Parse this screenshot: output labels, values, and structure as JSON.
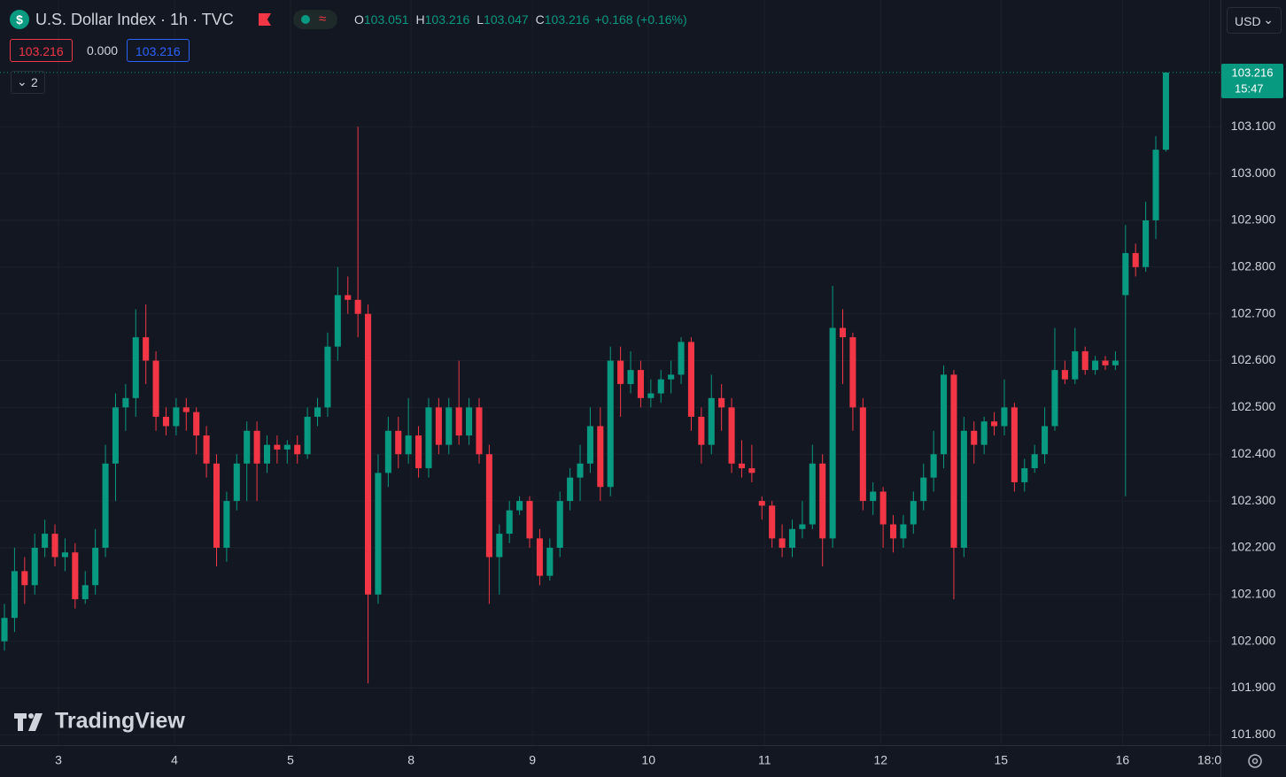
{
  "header": {
    "symbol_title": "U.S. Dollar Index · 1h · TVC",
    "ohlc": [
      {
        "key": "O",
        "value": "103.051"
      },
      {
        "key": "H",
        "value": "103.216"
      },
      {
        "key": "L",
        "value": "103.047"
      },
      {
        "key": "C",
        "value": "103.216"
      }
    ],
    "change": "+0.168 (+0.16%)",
    "price_boxes": [
      "103.216",
      "0.000",
      "103.216"
    ],
    "indicator_count": "2",
    "currency": "USD",
    "brand": "TradingView",
    "last_price_label": {
      "price": "103.216",
      "time": "15:47"
    }
  },
  "chart_data": {
    "type": "candlestick",
    "up_color": "#089981",
    "down_color": "#f23645",
    "grid": true,
    "last_price": 103.216,
    "xlim": [
      -0.44,
      120.4
    ],
    "xticks": [
      {
        "value": 5.35,
        "label": "3"
      },
      {
        "value": 16.84,
        "label": "4"
      },
      {
        "value": 28.33,
        "label": "5"
      },
      {
        "value": 40.26,
        "label": "8"
      },
      {
        "value": 52.28,
        "label": "9"
      },
      {
        "value": 63.77,
        "label": "10"
      },
      {
        "value": 75.26,
        "label": "11"
      },
      {
        "value": 86.75,
        "label": "12"
      },
      {
        "value": 98.68,
        "label": "15"
      },
      {
        "value": 110.7,
        "label": "16"
      },
      {
        "value": 119.3,
        "label": "18:0"
      }
    ],
    "ylim": [
      101.778,
      103.371
    ],
    "yticks": [
      {
        "value": 101.8,
        "label": "101.800"
      },
      {
        "value": 101.9,
        "label": "101.900"
      },
      {
        "value": 102.0,
        "label": "102.000"
      },
      {
        "value": 102.1,
        "label": "102.100"
      },
      {
        "value": 102.2,
        "label": "102.200"
      },
      {
        "value": 102.3,
        "label": "102.300"
      },
      {
        "value": 102.4,
        "label": "102.400"
      },
      {
        "value": 102.5,
        "label": "102.500"
      },
      {
        "value": 102.6,
        "label": "102.600"
      },
      {
        "value": 102.7,
        "label": "102.700"
      },
      {
        "value": 102.8,
        "label": "102.800"
      },
      {
        "value": 102.9,
        "label": "102.900"
      },
      {
        "value": 103.0,
        "label": "103.000"
      },
      {
        "value": 103.1,
        "label": "103.100"
      }
    ],
    "candles": [
      [
        102.0,
        102.08,
        101.98,
        102.05
      ],
      [
        102.05,
        102.2,
        102.02,
        102.15
      ],
      [
        102.15,
        102.18,
        102.08,
        102.12
      ],
      [
        102.12,
        102.23,
        102.1,
        102.2
      ],
      [
        102.2,
        102.26,
        102.18,
        102.23
      ],
      [
        102.23,
        102.25,
        102.16,
        102.18
      ],
      [
        102.18,
        102.22,
        102.15,
        102.19
      ],
      [
        102.19,
        102.21,
        102.07,
        102.09
      ],
      [
        102.09,
        102.15,
        102.08,
        102.12
      ],
      [
        102.12,
        102.24,
        102.1,
        102.2
      ],
      [
        102.2,
        102.42,
        102.18,
        102.38
      ],
      [
        102.38,
        102.53,
        102.3,
        102.5
      ],
      [
        102.5,
        102.55,
        102.45,
        102.52
      ],
      [
        102.52,
        102.71,
        102.48,
        102.65
      ],
      [
        102.65,
        102.72,
        102.55,
        102.6
      ],
      [
        102.6,
        102.62,
        102.45,
        102.48
      ],
      [
        102.48,
        102.5,
        102.44,
        102.46
      ],
      [
        102.46,
        102.52,
        102.44,
        102.5
      ],
      [
        102.5,
        102.52,
        102.45,
        102.49
      ],
      [
        102.49,
        102.5,
        102.4,
        102.44
      ],
      [
        102.44,
        102.46,
        102.35,
        102.38
      ],
      [
        102.38,
        102.4,
        102.16,
        102.2
      ],
      [
        102.2,
        102.32,
        102.17,
        102.3
      ],
      [
        102.3,
        102.4,
        102.28,
        102.38
      ],
      [
        102.38,
        102.47,
        102.3,
        102.45
      ],
      [
        102.45,
        102.47,
        102.3,
        102.38
      ],
      [
        102.38,
        102.44,
        102.36,
        102.42
      ],
      [
        102.42,
        102.44,
        102.38,
        102.41
      ],
      [
        102.41,
        102.43,
        102.38,
        102.42
      ],
      [
        102.42,
        102.44,
        102.38,
        102.4
      ],
      [
        102.4,
        102.5,
        102.39,
        102.48
      ],
      [
        102.48,
        102.52,
        102.46,
        102.5
      ],
      [
        102.5,
        102.66,
        102.48,
        102.63
      ],
      [
        102.63,
        102.8,
        102.6,
        102.74
      ],
      [
        102.74,
        102.78,
        102.7,
        102.73
      ],
      [
        102.73,
        103.1,
        102.65,
        102.7
      ],
      [
        102.7,
        102.72,
        101.91,
        102.1
      ],
      [
        102.1,
        102.4,
        102.08,
        102.36
      ],
      [
        102.36,
        102.48,
        102.33,
        102.45
      ],
      [
        102.45,
        102.48,
        102.37,
        102.4
      ],
      [
        102.4,
        102.52,
        102.38,
        102.44
      ],
      [
        102.44,
        102.46,
        102.35,
        102.37
      ],
      [
        102.37,
        102.52,
        102.35,
        102.5
      ],
      [
        102.5,
        102.52,
        102.4,
        102.42
      ],
      [
        102.42,
        102.52,
        102.4,
        102.5
      ],
      [
        102.5,
        102.6,
        102.42,
        102.44
      ],
      [
        102.44,
        102.52,
        102.42,
        102.5
      ],
      [
        102.5,
        102.52,
        102.38,
        102.4
      ],
      [
        102.4,
        102.42,
        102.08,
        102.18
      ],
      [
        102.18,
        102.25,
        102.1,
        102.23
      ],
      [
        102.23,
        102.3,
        102.21,
        102.28
      ],
      [
        102.28,
        102.31,
        102.27,
        102.3
      ],
      [
        102.3,
        102.31,
        102.2,
        102.22
      ],
      [
        102.22,
        102.24,
        102.12,
        102.14
      ],
      [
        102.14,
        102.22,
        102.13,
        102.2
      ],
      [
        102.2,
        102.32,
        102.18,
        102.3
      ],
      [
        102.3,
        102.37,
        102.28,
        102.35
      ],
      [
        102.35,
        102.42,
        102.3,
        102.38
      ],
      [
        102.38,
        102.5,
        102.36,
        102.46
      ],
      [
        102.46,
        102.5,
        102.3,
        102.33
      ],
      [
        102.33,
        102.63,
        102.31,
        102.6
      ],
      [
        102.6,
        102.63,
        102.48,
        102.55
      ],
      [
        102.55,
        102.62,
        102.53,
        102.58
      ],
      [
        102.58,
        102.6,
        102.5,
        102.52
      ],
      [
        102.52,
        102.56,
        102.5,
        102.53
      ],
      [
        102.53,
        102.58,
        102.51,
        102.56
      ],
      [
        102.56,
        102.6,
        102.53,
        102.57
      ],
      [
        102.57,
        102.65,
        102.55,
        102.64
      ],
      [
        102.64,
        102.65,
        102.45,
        102.48
      ],
      [
        102.48,
        102.5,
        102.38,
        102.42
      ],
      [
        102.42,
        102.57,
        102.4,
        102.52
      ],
      [
        102.52,
        102.55,
        102.45,
        102.5
      ],
      [
        102.5,
        102.52,
        102.36,
        102.38
      ],
      [
        102.38,
        102.43,
        102.35,
        102.37
      ],
      [
        102.37,
        102.42,
        102.34,
        102.36
      ],
      [
        102.3,
        102.31,
        102.26,
        102.29
      ],
      [
        102.29,
        102.3,
        102.2,
        102.22
      ],
      [
        102.22,
        102.25,
        102.18,
        102.2
      ],
      [
        102.2,
        102.26,
        102.18,
        102.24
      ],
      [
        102.24,
        102.3,
        102.22,
        102.25
      ],
      [
        102.25,
        102.42,
        102.24,
        102.38
      ],
      [
        102.38,
        102.4,
        102.16,
        102.22
      ],
      [
        102.22,
        102.76,
        102.2,
        102.67
      ],
      [
        102.67,
        102.71,
        102.55,
        102.65
      ],
      [
        102.65,
        102.66,
        102.45,
        102.5
      ],
      [
        102.5,
        102.52,
        102.28,
        102.3
      ],
      [
        102.3,
        102.34,
        102.27,
        102.32
      ],
      [
        102.32,
        102.33,
        102.2,
        102.25
      ],
      [
        102.25,
        102.27,
        102.19,
        102.22
      ],
      [
        102.22,
        102.27,
        102.2,
        102.25
      ],
      [
        102.25,
        102.32,
        102.23,
        102.3
      ],
      [
        102.3,
        102.38,
        102.28,
        102.35
      ],
      [
        102.35,
        102.45,
        102.32,
        102.4
      ],
      [
        102.4,
        102.59,
        102.37,
        102.57
      ],
      [
        102.57,
        102.58,
        102.09,
        102.2
      ],
      [
        102.2,
        102.48,
        102.18,
        102.45
      ],
      [
        102.45,
        102.47,
        102.38,
        102.42
      ],
      [
        102.42,
        102.48,
        102.4,
        102.47
      ],
      [
        102.47,
        102.49,
        102.44,
        102.46
      ],
      [
        102.46,
        102.56,
        102.44,
        102.5
      ],
      [
        102.5,
        102.51,
        102.32,
        102.34
      ],
      [
        102.34,
        102.39,
        102.32,
        102.37
      ],
      [
        102.37,
        102.42,
        102.36,
        102.4
      ],
      [
        102.4,
        102.5,
        102.38,
        102.46
      ],
      [
        102.46,
        102.67,
        102.45,
        102.58
      ],
      [
        102.58,
        102.6,
        102.55,
        102.56
      ],
      [
        102.56,
        102.67,
        102.55,
        102.62
      ],
      [
        102.62,
        102.63,
        102.57,
        102.58
      ],
      [
        102.58,
        102.61,
        102.57,
        102.6
      ],
      [
        102.6,
        102.61,
        102.58,
        102.59
      ],
      [
        102.59,
        102.62,
        102.58,
        102.6
      ],
      [
        102.74,
        102.89,
        102.31,
        102.83
      ],
      [
        102.83,
        102.85,
        102.78,
        102.8
      ],
      [
        102.8,
        102.94,
        102.79,
        102.9
      ],
      [
        102.9,
        103.08,
        102.86,
        103.051
      ],
      [
        103.051,
        103.216,
        103.047,
        103.216
      ]
    ]
  }
}
